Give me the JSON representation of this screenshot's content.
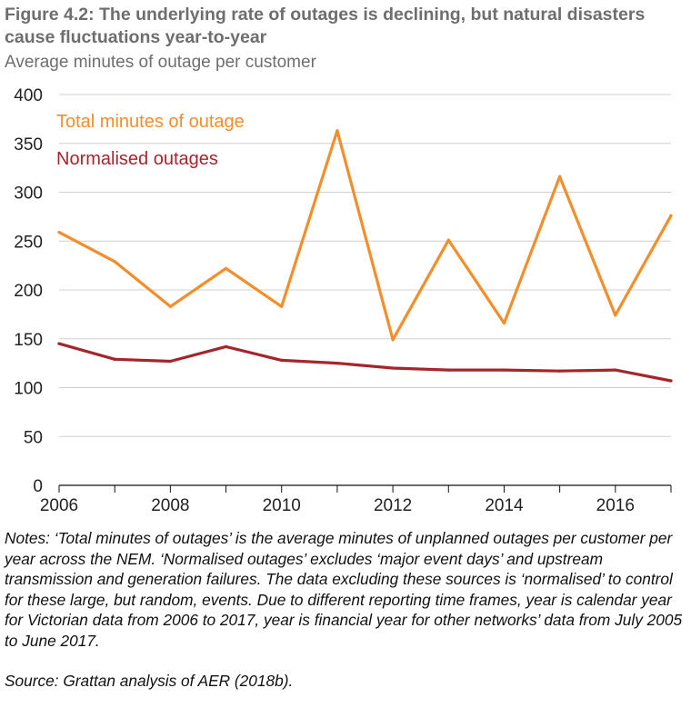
{
  "figure": {
    "title": "Figure 4.2: The underlying rate of outages is declining, but natural disasters cause fluctuations year-to-year",
    "subtitle": "Average minutes of outage per customer",
    "notes": "Notes: ‘Total minutes of outages’ is the average minutes of unplanned outages per customer per year across the NEM. ‘Normalised outages’ excludes ‘major event days’ and upstream transmission and generation failures. The data excluding these sources is ‘normalised’ to control for these large, but random, events. Due to different reporting time frames, year is calendar year for Victorian data from 2006 to 2017, year is financial year for other networks’ data from July 2005 to June 2017.",
    "source": "Source: Grattan analysis of AER (2018b)."
  },
  "chart_data": {
    "type": "line",
    "x": [
      2006,
      2007,
      2008,
      2009,
      2010,
      2011,
      2012,
      2013,
      2014,
      2015,
      2016,
      2017
    ],
    "xlim": [
      2006,
      2017
    ],
    "ylim": [
      0,
      400
    ],
    "yticks": [
      0,
      50,
      100,
      150,
      200,
      250,
      300,
      350,
      400
    ],
    "xticks": [
      2006,
      2008,
      2010,
      2012,
      2014,
      2016
    ],
    "grid": "horizontal",
    "legend": "in-plot labels, top-left",
    "series": [
      {
        "name": "Total minutes of outage",
        "color": "#f28e2b",
        "values": [
          259,
          229,
          183,
          222,
          183,
          363,
          149,
          251,
          166,
          316,
          174,
          276
        ]
      },
      {
        "name": "Normalised outages",
        "color": "#a3262c",
        "values": [
          145,
          129,
          127,
          142,
          128,
          125,
          120,
          118,
          118,
          117,
          118,
          107
        ]
      }
    ]
  }
}
